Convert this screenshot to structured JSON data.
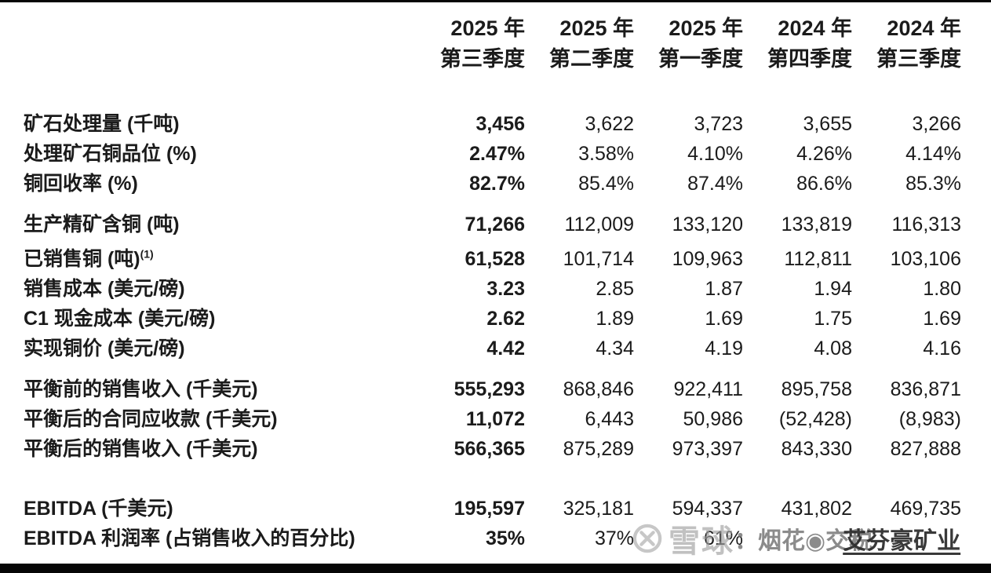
{
  "table": {
    "columns": [
      {
        "line1": "2025 年",
        "line2": "第三季度"
      },
      {
        "line1": "2025 年",
        "line2": "第二季度"
      },
      {
        "line1": "2025 年",
        "line2": "第一季度"
      },
      {
        "line1": "2024 年",
        "line2": "第四季度"
      },
      {
        "line1": "2024 年",
        "line2": "第三季度"
      }
    ],
    "rows": [
      {
        "label": "矿石处理量 (千吨)",
        "sup": "",
        "gap": "first-gap",
        "values": [
          "3,456",
          "3,622",
          "3,723",
          "3,655",
          "3,266"
        ]
      },
      {
        "label": "处理矿石铜品位 (%)",
        "sup": "",
        "gap": "",
        "values": [
          "2.47%",
          "3.58%",
          "4.10%",
          "4.26%",
          "4.14%"
        ]
      },
      {
        "label": "铜回收率 (%)",
        "sup": "",
        "gap": "",
        "values": [
          "82.7%",
          "85.4%",
          "87.4%",
          "86.6%",
          "85.3%"
        ]
      },
      {
        "label": "生产精矿含铜 (吨)",
        "sup": "",
        "gap": "gap-md",
        "values": [
          "71,266",
          "112,009",
          "133,120",
          "133,819",
          "116,313"
        ]
      },
      {
        "label": "已销售铜 (吨)",
        "sup": "(1)",
        "gap": "gap-sm",
        "values": [
          "61,528",
          "101,714",
          "109,963",
          "112,811",
          "103,106"
        ]
      },
      {
        "label": "销售成本 (美元/磅)",
        "sup": "",
        "gap": "",
        "values": [
          "3.23",
          "2.85",
          "1.87",
          "1.94",
          "1.80"
        ]
      },
      {
        "label": "C1 现金成本  (美元/磅)",
        "sup": "",
        "gap": "",
        "values": [
          "2.62",
          "1.89",
          "1.69",
          "1.75",
          "1.69"
        ]
      },
      {
        "label": "实现铜价 (美元/磅)",
        "sup": "",
        "gap": "",
        "values": [
          "4.42",
          "4.34",
          "4.19",
          "4.08",
          "4.16"
        ]
      },
      {
        "label": "平衡前的销售收入 (千美元)",
        "sup": "",
        "gap": "gap-md",
        "values": [
          "555,293",
          "868,846",
          "922,411",
          "895,758",
          "836,871"
        ]
      },
      {
        "label": "平衡后的合同应收款 (千美元)",
        "sup": "",
        "gap": "",
        "values": [
          "11,072",
          "6,443",
          "50,986",
          "(52,428)",
          "(8,983)"
        ]
      },
      {
        "label": "平衡后的销售收入 (千美元)",
        "sup": "",
        "gap": "",
        "values": [
          "566,365",
          "875,289",
          "973,397",
          "843,330",
          "827,888"
        ]
      },
      {
        "label": "EBITDA (千美元)",
        "sup": "",
        "gap": "gap-lg",
        "values": [
          "195,597",
          "325,181",
          "594,337",
          "431,802",
          "469,735"
        ]
      },
      {
        "label": "EBITDA 利润率 (占销售收入的百分比)",
        "sup": "",
        "gap": "",
        "values": [
          "35%",
          "37%",
          "61%",
          "",
          ""
        ]
      }
    ]
  },
  "watermark": {
    "site": "雪球",
    "separator": "：",
    "username": "烟花◉交税",
    "stock_tag": "艾芬豪矿业"
  },
  "colors": {
    "text": "#1b1b1b",
    "background": "#ffffff",
    "frame_bar": "#060606",
    "watermark_gray": "#a0a0a0"
  }
}
